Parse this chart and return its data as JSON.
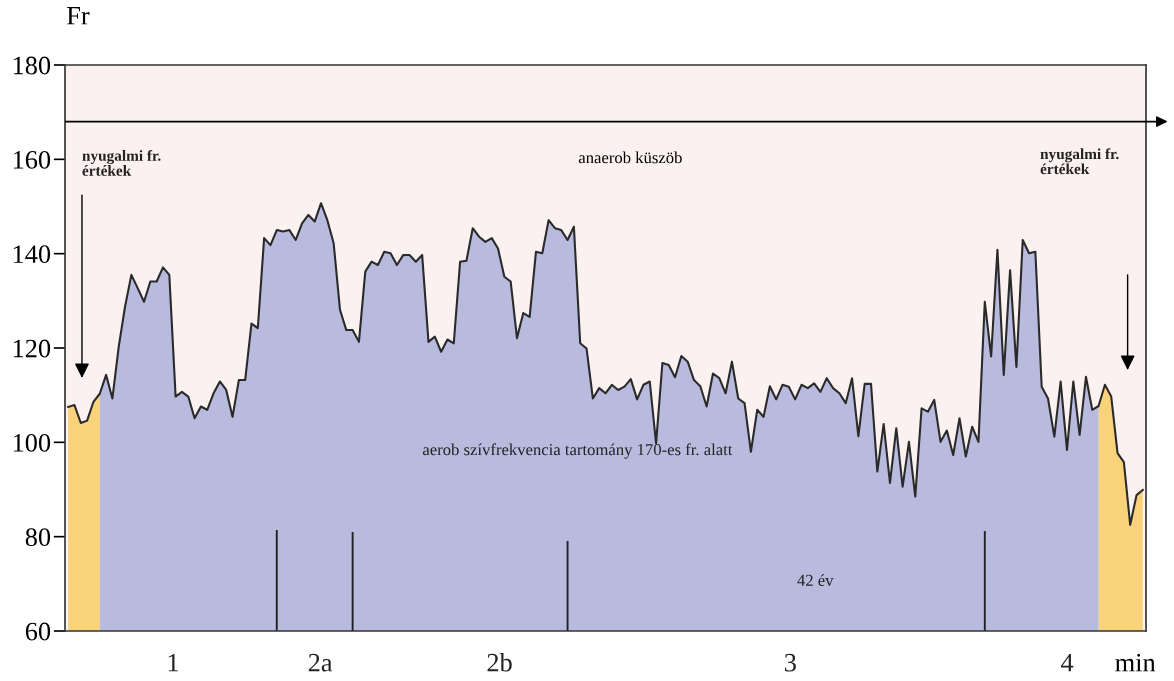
{
  "chart_data": {
    "type": "area",
    "ylabel": "Fr",
    "xlabel": "min",
    "ylim": [
      60,
      180
    ],
    "yticks": [
      60,
      80,
      100,
      120,
      140,
      160,
      180
    ],
    "categories": [
      null,
      null,
      null,
      null,
      null,
      null,
      null,
      null,
      null,
      null,
      null,
      null,
      null,
      null,
      null,
      null,
      null,
      null,
      null,
      null,
      null,
      null,
      null,
      null,
      null,
      null,
      null,
      null,
      null,
      null,
      null,
      null,
      null,
      null,
      null,
      null,
      null,
      null,
      null,
      null,
      null,
      null,
      null,
      null,
      null,
      null,
      null,
      null,
      null,
      null,
      null,
      null,
      null,
      null,
      null,
      null,
      null,
      null,
      null,
      null,
      null,
      null,
      null,
      null,
      null,
      null,
      null,
      null,
      null,
      null,
      null,
      null,
      null,
      null,
      null,
      null,
      null,
      null,
      null,
      null,
      null,
      null,
      null,
      null,
      null,
      null,
      null,
      null,
      null,
      null,
      null,
      null,
      null,
      null,
      null,
      null,
      null,
      null,
      null,
      null,
      null,
      null,
      null,
      null,
      null,
      null,
      null,
      null,
      null,
      null,
      null,
      null,
      null,
      null,
      null,
      null,
      null,
      null,
      null,
      null,
      null,
      null,
      null,
      null,
      null,
      null,
      null,
      null,
      null,
      null,
      null,
      null,
      null,
      null,
      null,
      null,
      null,
      null,
      null,
      null,
      null,
      null,
      null,
      null,
      null,
      null,
      null,
      null,
      null,
      null,
      null,
      null,
      null,
      null,
      null,
      null,
      null,
      null,
      null,
      null,
      null,
      null,
      null,
      null,
      null,
      null,
      null,
      null,
      null,
      null,
      null
    ],
    "series": [
      {
        "values": [
          107.5,
          107.9,
          104.1,
          104.6,
          108.6,
          110.3,
          114.3,
          109.3,
          120.3,
          128.8,
          135.5,
          132.7,
          129.8,
          134.1,
          134.1,
          137.1,
          135.5,
          109.7,
          110.7,
          109.7,
          105.1,
          107.6,
          106.9,
          110.4,
          112.9,
          111.1,
          105.4,
          113.2,
          113.2,
          125.2,
          124.2,
          143.3,
          141.8,
          145,
          144.7,
          145,
          142.9,
          146.4,
          148.2,
          146.8,
          150.7,
          147.1,
          142.2,
          128.1,
          123.8,
          123.8,
          121.3,
          136.2,
          138.3,
          137.6,
          140.4,
          140.1,
          137.6,
          139.7,
          139.7,
          138.3,
          139.7,
          121.3,
          122.4,
          119.2,
          121.8,
          121,
          138.3,
          138.5,
          145.4,
          143.6,
          142.5,
          143.3,
          141.1,
          135.1,
          134.1,
          122.1,
          127.4,
          126.6,
          140.4,
          140.1,
          147.1,
          145.4,
          145,
          142.9,
          145.7,
          121,
          119.9,
          109.3,
          111.5,
          110.4,
          112.2,
          111.1,
          111.8,
          113.4,
          109.1,
          112.2,
          112.9,
          99.8,
          116.8,
          116.4,
          113.8,
          118.3,
          117.1,
          113.2,
          111.9,
          107.6,
          114.6,
          113.6,
          110.4,
          117.1,
          109.3,
          108.3,
          98,
          106.9,
          105.4,
          111.9,
          109.1,
          112.2,
          111.8,
          109.1,
          112.2,
          111.5,
          112.5,
          110.7,
          113.6,
          111.5,
          110.4,
          108.3,
          113.6,
          101.3,
          112.4,
          112.4,
          93.8,
          103.9,
          91.4,
          103,
          90.6,
          100.1,
          88.5,
          107.2,
          106.5,
          109,
          100.1,
          102.5,
          97.3,
          105.1,
          97,
          103.3,
          100.1,
          129.8,
          118.2,
          140.8,
          114.3,
          136.5,
          116,
          142.9,
          140.1,
          140.4,
          111.8,
          109.3,
          101.2,
          112.9,
          98.4,
          112.9,
          101.6,
          113.9,
          106.9,
          107.7,
          112.2,
          109.7,
          97.7,
          95.8,
          82.5,
          88.8,
          89.9
        ],
        "colors": [
          "#f9d27a",
          "#f9d27a",
          "#f9d27a",
          "#f9d27a",
          "#f9d27a",
          "#b8bbdd",
          "#b8bbdd",
          "#b8bbdd",
          "#b8bbdd",
          "#b8bbdd",
          "#b8bbdd",
          "#b8bbdd",
          "#b8bbdd",
          "#b8bbdd",
          "#b8bbdd",
          "#b8bbdd",
          "#b8bbdd",
          "#b8bbdd",
          "#b8bbdd",
          "#b8bbdd",
          "#b8bbdd",
          "#b8bbdd",
          "#b8bbdd",
          "#b8bbdd",
          "#b8bbdd",
          "#b8bbdd",
          "#b8bbdd",
          "#b8bbdd",
          "#b8bbdd",
          "#b8bbdd",
          "#b8bbdd",
          "#b8bbdd",
          "#b8bbdd",
          "#b8bbdd",
          "#b8bbdd",
          "#b8bbdd",
          "#b8bbdd",
          "#b8bbdd",
          "#b8bbdd",
          "#b8bbdd",
          "#b8bbdd",
          "#b8bbdd",
          "#b8bbdd",
          "#b8bbdd",
          "#b8bbdd",
          "#b8bbdd",
          "#b8bbdd",
          "#b8bbdd",
          "#b8bbdd",
          "#b8bbdd",
          "#b8bbdd",
          "#b8bbdd",
          "#b8bbdd",
          "#b8bbdd",
          "#b8bbdd",
          "#b8bbdd",
          "#b8bbdd",
          "#b8bbdd",
          "#b8bbdd",
          "#b8bbdd",
          "#b8bbdd",
          "#b8bbdd",
          "#b8bbdd",
          "#b8bbdd",
          "#b8bbdd",
          "#b8bbdd",
          "#b8bbdd",
          "#b8bbdd",
          "#b8bbdd",
          "#b8bbdd",
          "#b8bbdd",
          "#b8bbdd",
          "#b8bbdd",
          "#b8bbdd",
          "#b8bbdd",
          "#b8bbdd",
          "#b8bbdd",
          "#b8bbdd",
          "#b8bbdd",
          "#b8bbdd",
          "#b8bbdd",
          "#b8bbdd",
          "#b8bbdd",
          "#b8bbdd",
          "#b8bbdd",
          "#b8bbdd",
          "#b8bbdd",
          "#b8bbdd",
          "#b8bbdd",
          "#b8bbdd",
          "#b8bbdd",
          "#b8bbdd",
          "#b8bbdd",
          "#b8bbdd",
          "#b8bbdd",
          "#b8bbdd",
          "#b8bbdd",
          "#b8bbdd",
          "#b8bbdd",
          "#b8bbdd",
          "#b8bbdd",
          "#b8bbdd",
          "#b8bbdd",
          "#b8bbdd",
          "#b8bbdd",
          "#b8bbdd",
          "#b8bbdd",
          "#b8bbdd",
          "#b8bbdd",
          "#b8bbdd",
          "#b8bbdd",
          "#b8bbdd",
          "#b8bbdd",
          "#b8bbdd",
          "#b8bbdd",
          "#b8bbdd",
          "#b8bbdd",
          "#b8bbdd",
          "#b8bbdd",
          "#b8bbdd",
          "#b8bbdd",
          "#b8bbdd",
          "#b8bbdd",
          "#b8bbdd",
          "#b8bbdd",
          "#b8bbdd",
          "#b8bbdd",
          "#b8bbdd",
          "#b8bbdd",
          "#b8bbdd",
          "#b8bbdd",
          "#b8bbdd",
          "#b8bbdd",
          "#b8bbdd",
          "#b8bbdd",
          "#b8bbdd",
          "#b8bbdd",
          "#b8bbdd",
          "#b8bbdd",
          "#b8bbdd",
          "#b8bbdd",
          "#b8bbdd",
          "#b8bbdd",
          "#b8bbdd",
          "#b8bbdd",
          "#b8bbdd",
          "#b8bbdd",
          "#b8bbdd",
          "#b8bbdd",
          "#b8bbdd",
          "#b8bbdd",
          "#b8bbdd",
          "#b8bbdd",
          "#b8bbdd",
          "#b8bbdd",
          "#b8bbdd",
          "#b8bbdd",
          "#b8bbdd",
          "#b8bbdd",
          "#b8bbdd",
          "#b8bbdd",
          "#b8bbdd",
          "#b8bbdd",
          "#f9d27a",
          "#f9d27a",
          "#f9d27a",
          "#f9d27a",
          "#f9d27a",
          "#f9d27a",
          "#f9d27a",
          "#f9d27a"
        ]
      },
      {
        "type": "bar",
        "color": "#222222",
        "values": [
          null,
          null,
          null,
          null,
          null,
          null,
          null,
          null,
          null,
          null,
          null,
          null,
          null,
          null,
          null,
          null,
          null,
          null,
          null,
          null,
          null,
          null,
          null,
          null,
          null,
          null,
          null,
          null,
          null,
          null,
          null,
          null,
          null,
          81.4,
          null,
          null,
          null,
          null,
          null,
          null,
          null,
          null,
          null,
          null,
          null,
          81.0,
          null,
          null,
          null,
          null,
          null,
          null,
          null,
          null,
          null,
          null,
          null,
          null,
          null,
          null,
          null,
          null,
          null,
          null,
          null,
          null,
          null,
          null,
          null,
          null,
          null,
          null,
          null,
          null,
          null,
          null,
          null,
          null,
          null,
          79.1,
          null,
          null,
          null,
          null,
          null,
          null,
          null,
          null,
          null,
          null,
          null,
          null,
          null,
          null,
          null,
          null,
          null,
          null,
          null,
          null,
          null,
          null,
          null,
          null,
          null,
          null,
          null,
          null,
          null,
          null,
          null,
          null,
          null,
          null,
          null,
          null,
          null,
          null,
          null,
          null,
          null,
          null,
          null,
          null,
          null,
          null,
          null,
          null,
          null,
          null,
          null,
          null,
          null,
          null,
          null,
          null,
          null,
          null,
          null,
          null,
          null,
          null,
          null,
          null,
          null,
          81.2,
          null,
          null,
          null,
          null,
          null,
          null,
          null,
          null,
          null,
          null,
          null,
          null,
          null,
          null,
          null,
          null,
          null,
          null,
          null,
          null,
          null,
          null,
          null,
          null,
          null
        ]
      }
    ],
    "ref_lines": [
      {
        "axis": "y",
        "value": 168,
        "label": "anaerob küszöb",
        "color": "#000000"
      }
    ],
    "annotations": [
      "nyugalmi fr.\nértékek",
      "nyugalmi fr.\nértékek",
      "aerob szívfrekvencia tartomány 170-es fr. alatt",
      "42 év",
      "1",
      "2a",
      "2b",
      "3",
      "4"
    ]
  }
}
